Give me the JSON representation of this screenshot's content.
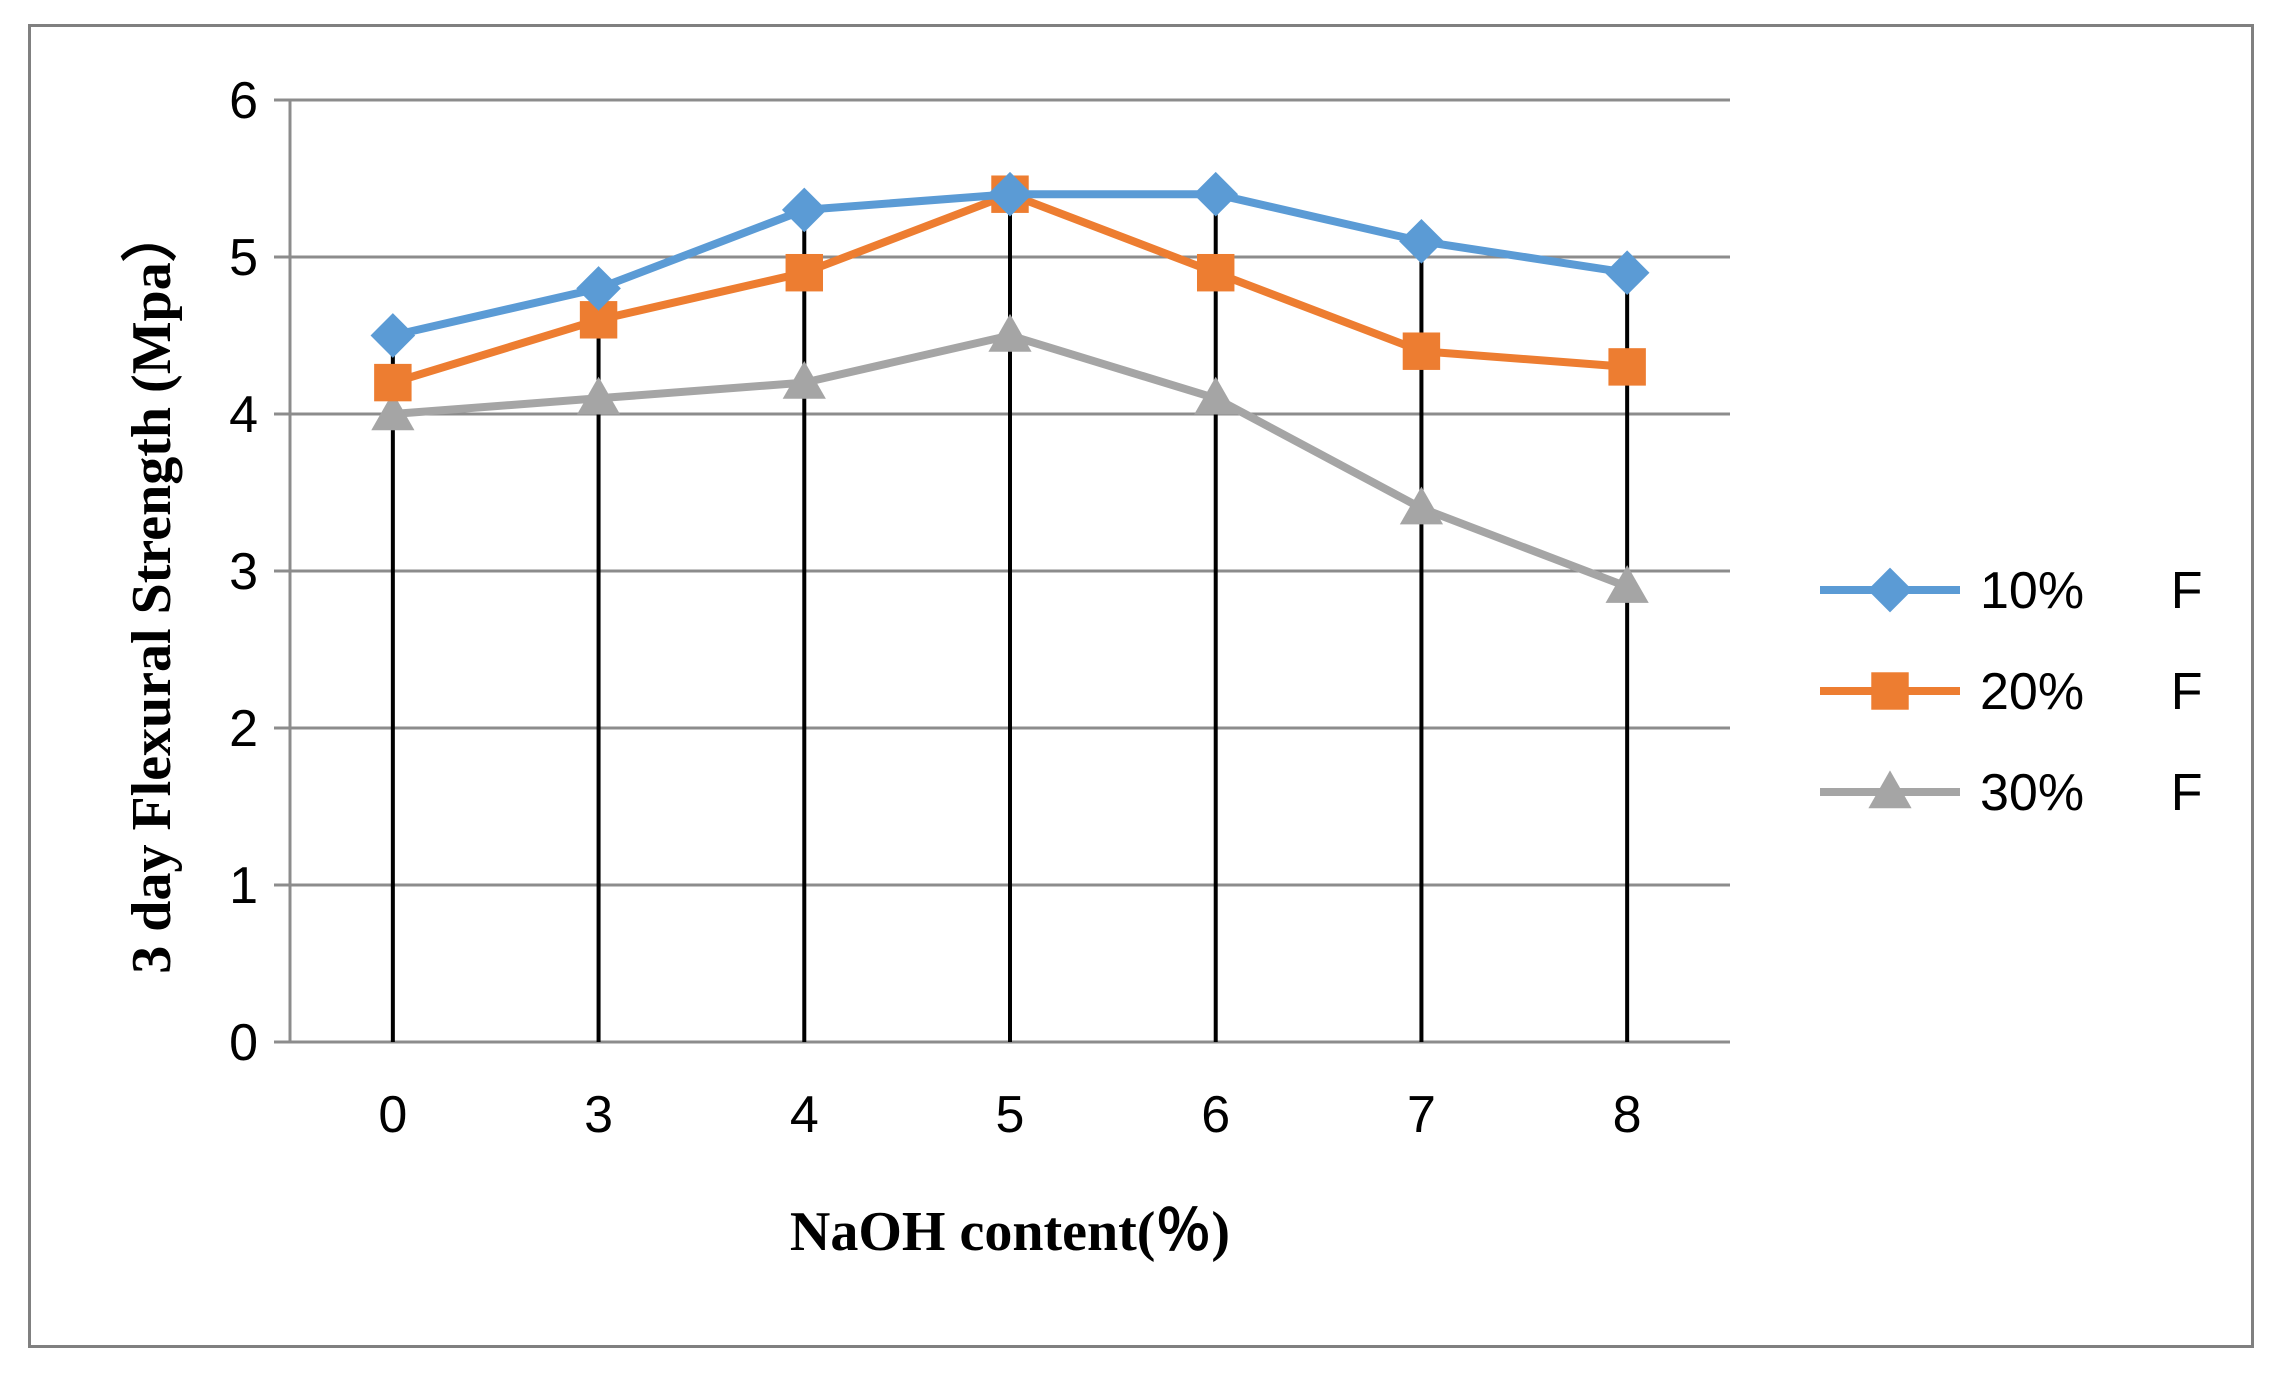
{
  "chart_data": {
    "type": "line",
    "categories": [
      "0",
      "3",
      "4",
      "5",
      "6",
      "7",
      "8"
    ],
    "series": [
      {
        "name": "10%      F",
        "values": [
          4.5,
          4.8,
          5.3,
          5.4,
          5.4,
          5.1,
          4.9
        ],
        "color": "#5B9BD5",
        "marker": "diamond"
      },
      {
        "name": "20%      F",
        "values": [
          4.2,
          4.6,
          4.9,
          5.4,
          4.9,
          4.4,
          4.3
        ],
        "color": "#ED7D31",
        "marker": "square"
      },
      {
        "name": "30%      F",
        "values": [
          4.0,
          4.1,
          4.2,
          4.5,
          4.1,
          3.4,
          2.9
        ],
        "color": "#A5A5A5",
        "marker": "triangle"
      }
    ],
    "xlabel": "NaOH content(％)",
    "ylabel": "3 day Flexural  Strength (Mpa）",
    "ylim": [
      0,
      6
    ],
    "yticks": [
      "0",
      "1",
      "2",
      "3",
      "4",
      "5",
      "6"
    ],
    "drop_lines": true,
    "grid": true,
    "legend_position": "right"
  }
}
